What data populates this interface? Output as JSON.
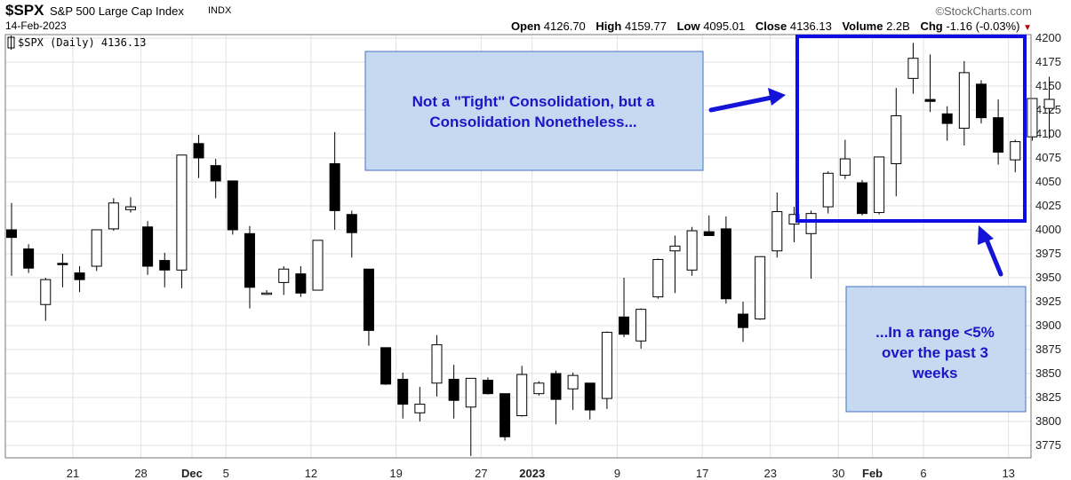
{
  "header": {
    "symbol": "$SPX",
    "name": "S&P 500 Large Cap Index",
    "exchange": "INDX",
    "date": "14-Feb-2023",
    "brand": "©StockCharts.com",
    "open_label": "Open",
    "open": "4126.70",
    "high_label": "High",
    "high": "4159.77",
    "low_label": "Low",
    "low": "4095.01",
    "close_label": "Close",
    "close": "4136.13",
    "volume_label": "Volume",
    "volume": "2.2B",
    "chg_label": "Chg",
    "chg": "-1.16 (-0.03%)"
  },
  "legend": "$SPX (Daily) 4136.13",
  "annotations": {
    "box1": [
      "Not a \"Tight\" Consolidation, but a",
      "Consolidation Nonetheless..."
    ],
    "box2": [
      "...In a range <5%",
      "over the past 3",
      "weeks"
    ]
  },
  "colors": {
    "up_fill": "#ffffff",
    "down_fill": "#000000",
    "candle_stroke": "#000000",
    "grid": "#e2e2e2",
    "annotation_fill": "#c5d9f1",
    "annotation_border": "#4472c4",
    "annotation_text": "#1a16c8",
    "highlight_border": "#0c0ce6",
    "arrow": "#1414d8"
  },
  "chart_data": {
    "type": "candlestick",
    "title": "$SPX (Daily) 4136.13",
    "ylim": [
      3760,
      4200
    ],
    "y_ticks": [
      3775,
      3800,
      3825,
      3850,
      3875,
      3900,
      3925,
      3950,
      3975,
      4000,
      4025,
      4050,
      4075,
      4100,
      4125,
      4150,
      4175,
      4200
    ],
    "y_axis_side": "right",
    "x_tick_labels": [
      {
        "label": "21",
        "bold": false
      },
      {
        "label": "28",
        "bold": false
      },
      {
        "label": "Dec",
        "bold": true
      },
      {
        "label": "5",
        "bold": false
      },
      {
        "label": "12",
        "bold": false
      },
      {
        "label": "19",
        "bold": false
      },
      {
        "label": "27",
        "bold": false
      },
      {
        "label": "2023",
        "bold": true
      },
      {
        "label": "9",
        "bold": false
      },
      {
        "label": "17",
        "bold": false
      },
      {
        "label": "23",
        "bold": false
      },
      {
        "label": "30",
        "bold": false
      },
      {
        "label": "Feb",
        "bold": true
      },
      {
        "label": "6",
        "bold": false
      },
      {
        "label": "13",
        "bold": false
      }
    ],
    "candles": [
      {
        "o": 4000,
        "h": 4028,
        "l": 3952,
        "c": 3992
      },
      {
        "o": 3980,
        "h": 3985,
        "l": 3955,
        "c": 3960
      },
      {
        "o": 3922,
        "h": 3950,
        "l": 3905,
        "c": 3948
      },
      {
        "o": 3965,
        "h": 3975,
        "l": 3940,
        "c": 3964
      },
      {
        "o": 3955,
        "h": 3962,
        "l": 3935,
        "c": 3948
      },
      {
        "o": 3962,
        "h": 4000,
        "l": 3957,
        "c": 4000
      },
      {
        "o": 4001,
        "h": 4033,
        "l": 3999,
        "c": 4028
      },
      {
        "o": 4021,
        "h": 4034,
        "l": 4018,
        "c": 4024
      },
      {
        "o": 4003,
        "h": 4009,
        "l": 3953,
        "c": 3962
      },
      {
        "o": 3968,
        "h": 3976,
        "l": 3940,
        "c": 3958
      },
      {
        "o": 3958,
        "h": 4078,
        "l": 3939,
        "c": 4078
      },
      {
        "o": 4090,
        "h": 4099,
        "l": 4054,
        "c": 4075
      },
      {
        "o": 4067,
        "h": 4074,
        "l": 4033,
        "c": 4051
      },
      {
        "o": 4051,
        "h": 4051,
        "l": 3995,
        "c": 4000
      },
      {
        "o": 3996,
        "h": 4004,
        "l": 3918,
        "c": 3940
      },
      {
        "o": 3933,
        "h": 3937,
        "l": 3932,
        "c": 3934
      },
      {
        "o": 3945,
        "h": 3962,
        "l": 3932,
        "c": 3959
      },
      {
        "o": 3954,
        "h": 3962,
        "l": 3930,
        "c": 3934
      },
      {
        "o": 3937,
        "h": 3986,
        "l": 3938,
        "c": 3989
      },
      {
        "o": 4069,
        "h": 4102,
        "l": 4000,
        "c": 4020
      },
      {
        "o": 4016,
        "h": 4020,
        "l": 3971,
        "c": 3997
      },
      {
        "o": 3959,
        "h": 3959,
        "l": 3879,
        "c": 3895
      },
      {
        "o": 3877,
        "h": 3877,
        "l": 3838,
        "c": 3839
      },
      {
        "o": 3844,
        "h": 3851,
        "l": 3803,
        "c": 3818
      },
      {
        "o": 3809,
        "h": 3836,
        "l": 3800,
        "c": 3818
      },
      {
        "o": 3840,
        "h": 3890,
        "l": 3826,
        "c": 3880
      },
      {
        "o": 3844,
        "h": 3859,
        "l": 3803,
        "c": 3822
      },
      {
        "o": 3815,
        "h": 3845,
        "l": 3764,
        "c": 3845
      },
      {
        "o": 3843,
        "h": 3846,
        "l": 3828,
        "c": 3829
      },
      {
        "o": 3829,
        "h": 3829,
        "l": 3780,
        "c": 3784
      },
      {
        "o": 3806,
        "h": 3858,
        "l": 3805,
        "c": 3849
      },
      {
        "o": 3829,
        "h": 3842,
        "l": 3827,
        "c": 3840
      },
      {
        "o": 3850,
        "h": 3853,
        "l": 3797,
        "c": 3823
      },
      {
        "o": 3834,
        "h": 3851,
        "l": 3812,
        "c": 3848
      },
      {
        "o": 3840,
        "h": 3840,
        "l": 3802,
        "c": 3812
      },
      {
        "o": 3824,
        "h": 3894,
        "l": 3813,
        "c": 3893
      },
      {
        "o": 3909,
        "h": 3950,
        "l": 3888,
        "c": 3891
      },
      {
        "o": 3884,
        "h": 3918,
        "l": 3876,
        "c": 3917
      },
      {
        "o": 3930,
        "h": 3970,
        "l": 3928,
        "c": 3969
      },
      {
        "o": 3978,
        "h": 3994,
        "l": 3934,
        "c": 3983
      },
      {
        "o": 3958,
        "h": 4003,
        "l": 3952,
        "c": 3999
      },
      {
        "o": 3998,
        "h": 4015,
        "l": 3996,
        "c": 3994
      },
      {
        "o": 4001,
        "h": 4014,
        "l": 3923,
        "c": 3928
      },
      {
        "o": 3912,
        "h": 3925,
        "l": 3883,
        "c": 3898
      },
      {
        "o": 3907,
        "h": 3972,
        "l": 3906,
        "c": 3972
      },
      {
        "o": 3978,
        "h": 4039,
        "l": 3971,
        "c": 4019
      },
      {
        "o": 4006,
        "h": 4024,
        "l": 3987,
        "c": 4016
      },
      {
        "o": 3996,
        "h": 4020,
        "l": 3949,
        "c": 4017
      },
      {
        "o": 4024,
        "h": 4061,
        "l": 4017,
        "c": 4059
      },
      {
        "o": 4057,
        "h": 4094,
        "l": 4053,
        "c": 4074
      },
      {
        "o": 4049,
        "h": 4052,
        "l": 4015,
        "c": 4017
      },
      {
        "o": 4018,
        "h": 4076,
        "l": 4016,
        "c": 4076
      },
      {
        "o": 4069,
        "h": 4148,
        "l": 4035,
        "c": 4119
      },
      {
        "o": 4158,
        "h": 4195,
        "l": 4142,
        "c": 4179
      },
      {
        "o": 4136,
        "h": 4183,
        "l": 4123,
        "c": 4134
      },
      {
        "o": 4121,
        "h": 4129,
        "l": 4093,
        "c": 4111
      },
      {
        "o": 4106,
        "h": 4176,
        "l": 4088,
        "c": 4164
      },
      {
        "o": 4152,
        "h": 4156,
        "l": 4111,
        "c": 4117
      },
      {
        "o": 4117,
        "h": 4136,
        "l": 4068,
        "c": 4081
      },
      {
        "o": 4073,
        "h": 4094,
        "l": 4060,
        "c": 4092
      },
      {
        "o": 4097,
        "h": 4137,
        "l": 4093,
        "c": 4137
      },
      {
        "o": 4126.7,
        "h": 4159.77,
        "l": 4095.01,
        "c": 4136.13
      }
    ]
  }
}
